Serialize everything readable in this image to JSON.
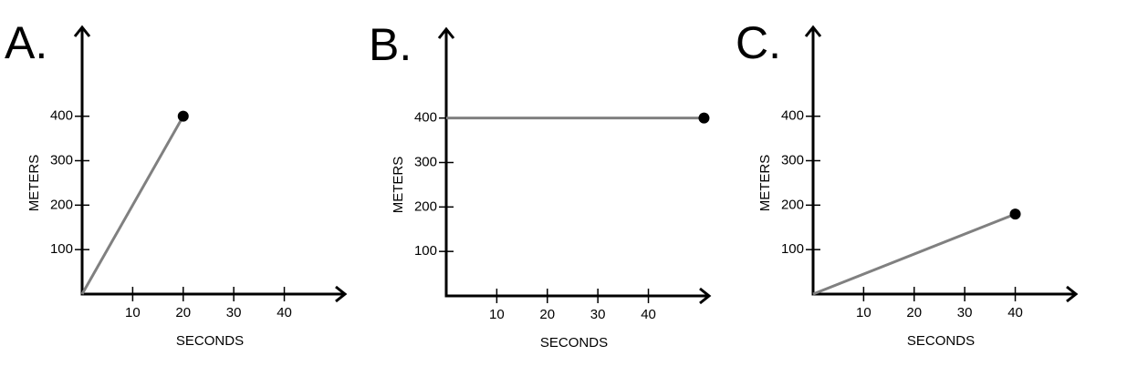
{
  "chart_data": [
    {
      "type": "line",
      "title": "A.",
      "xlabel": "SECONDS",
      "ylabel": "METERS",
      "x": [
        0,
        20
      ],
      "series": [
        {
          "color": "#808080",
          "values": [
            0,
            400
          ]
        }
      ],
      "xlim": [
        0,
        52
      ],
      "ylim": [
        0,
        600
      ],
      "xticks": [
        10,
        20,
        30,
        40
      ],
      "yticks": [
        100,
        200,
        300,
        400
      ]
    },
    {
      "type": "line",
      "title": "B.",
      "xlabel": "SECONDS",
      "ylabel": "METERS",
      "x": [
        0,
        51
      ],
      "series": [
        {
          "color": "#808080",
          "values": [
            400,
            400
          ]
        }
      ],
      "xlim": [
        0,
        52
      ],
      "ylim": [
        0,
        600
      ],
      "xticks": [
        10,
        20,
        30,
        40
      ],
      "yticks": [
        100,
        200,
        300,
        400
      ]
    },
    {
      "type": "line",
      "title": "C.",
      "xlabel": "SECONDS",
      "ylabel": "METERS",
      "x": [
        0,
        40
      ],
      "series": [
        {
          "color": "#808080",
          "values": [
            0,
            180
          ]
        }
      ],
      "xlim": [
        0,
        52
      ],
      "ylim": [
        0,
        600
      ],
      "xticks": [
        10,
        20,
        30,
        40
      ],
      "yticks": [
        100,
        200,
        300,
        400
      ]
    }
  ]
}
